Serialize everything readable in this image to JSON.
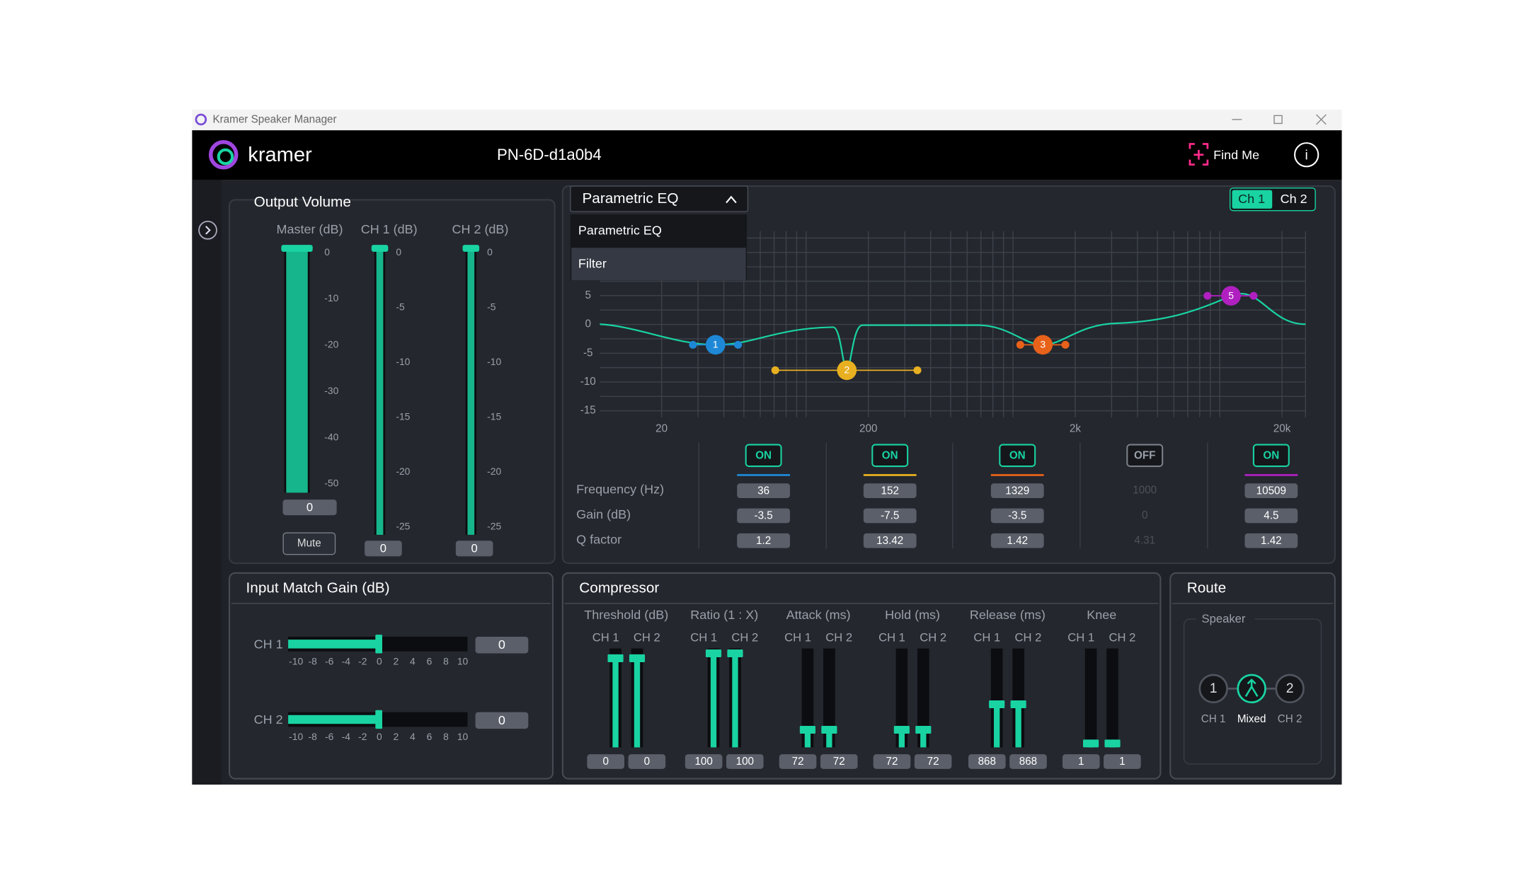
{
  "window": {
    "title": "Kramer Speaker Manager"
  },
  "header": {
    "brand": "kramer",
    "device": "PN-6D-d1a0b4",
    "find_me": "Find Me",
    "info": "i"
  },
  "output_volume": {
    "title": "Output Volume",
    "channels": [
      {
        "label": "Master (dB)",
        "scale": [
          "0",
          "-10",
          "-20",
          "-30",
          "-40",
          "-50"
        ],
        "value": "0"
      },
      {
        "label": "CH 1 (dB)",
        "scale": [
          "0",
          "-5",
          "-10",
          "-15",
          "-20",
          "-25"
        ],
        "value": "0"
      },
      {
        "label": "CH 2 (dB)",
        "scale": [
          "0",
          "-5",
          "-10",
          "-15",
          "-20",
          "-25"
        ],
        "value": "0"
      }
    ],
    "mute": "Mute"
  },
  "eq": {
    "mode": "Parametric EQ",
    "options": [
      "Parametric EQ",
      "Filter"
    ],
    "channels": [
      "Ch 1",
      "Ch 2"
    ],
    "y_axis": [
      "5",
      "0",
      "-5",
      "-10",
      "-15"
    ],
    "x_axis": [
      "20",
      "200",
      "2k",
      "20k"
    ],
    "row_labels": [
      "Frequency (Hz)",
      "Gain (dB)",
      "Q factor"
    ],
    "bands": [
      {
        "marker": "1",
        "state": "ON",
        "frequency": "36",
        "gain": "-3.5",
        "q": "1.2"
      },
      {
        "marker": "2",
        "state": "ON",
        "frequency": "152",
        "gain": "-7.5",
        "q": "13.42"
      },
      {
        "marker": "3",
        "state": "ON",
        "frequency": "1329",
        "gain": "-3.5",
        "q": "1.42"
      },
      {
        "state": "OFF",
        "frequency": "1000",
        "gain": "0",
        "q": "4.31"
      },
      {
        "marker": "5",
        "state": "ON",
        "frequency": "10509",
        "gain": "4.5",
        "q": "1.42"
      }
    ]
  },
  "input_match_gain": {
    "title": "Input Match Gain (dB)",
    "scale": [
      "-10",
      "-8",
      "-6",
      "-4",
      "-2",
      "0",
      "2",
      "4",
      "6",
      "8",
      "10"
    ],
    "channels": [
      {
        "label": "CH 1",
        "value": "0"
      },
      {
        "label": "CH 2",
        "value": "0"
      }
    ]
  },
  "compressor": {
    "title": "Compressor",
    "channel_labels": [
      "CH 1",
      "CH 2"
    ],
    "parameters": [
      {
        "label": "Threshold (dB)",
        "values": [
          "0",
          "0"
        ]
      },
      {
        "label": "Ratio (1 : X)",
        "values": [
          "100",
          "100"
        ]
      },
      {
        "label": "Attack (ms)",
        "values": [
          "72",
          "72"
        ]
      },
      {
        "label": "Hold (ms)",
        "values": [
          "72",
          "72"
        ]
      },
      {
        "label": "Release (ms)",
        "values": [
          "868",
          "868"
        ]
      },
      {
        "label": "Knee",
        "values": [
          "1",
          "1"
        ]
      }
    ]
  },
  "route": {
    "title": "Route",
    "group": "Speaker",
    "options": [
      {
        "icon": "1",
        "label": "CH 1"
      },
      {
        "label": "Mixed"
      },
      {
        "icon": "2",
        "label": "CH 2"
      }
    ]
  }
}
